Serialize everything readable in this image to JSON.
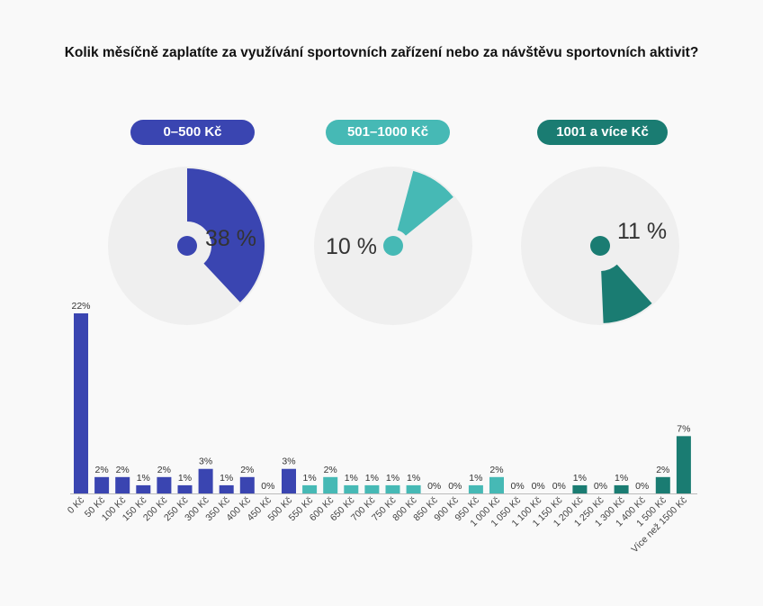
{
  "chart_data": {
    "type": "bar",
    "title": "Kolik měsíčně zaplatíte za využívání sportovních zařízení nebo za návštěvu sportovních aktivit?",
    "groups": [
      {
        "label": "0–500 Kč",
        "percent": 38,
        "percent_label": "38 %",
        "color": "#3a45b1"
      },
      {
        "label": "501–1000 Kč",
        "percent": 10,
        "percent_label": "10 %",
        "color": "#46b9b5"
      },
      {
        "label": "1001 a více Kč",
        "percent": 11,
        "percent_label": "11 %",
        "color": "#1a7c72"
      }
    ],
    "categories": [
      "0 Kč",
      "50 Kč",
      "100 Kč",
      "150 Kč",
      "200 Kč",
      "250 Kč",
      "300 Kč",
      "350 Kč",
      "400 Kč",
      "450 Kč",
      "500 Kč",
      "550 Kč",
      "600 Kč",
      "650 Kč",
      "700 Kč",
      "750 Kč",
      "800 Kč",
      "850 Kč",
      "900 Kč",
      "950 Kč",
      "1 000 Kč",
      "1 050 Kč",
      "1 100 Kč",
      "1 150 Kč",
      "1 200 Kč",
      "1 250 Kč",
      "1 300 Kč",
      "1 400 Kč",
      "1 500 Kč",
      "Více než 1500 Kč"
    ],
    "values": [
      22,
      2,
      2,
      1,
      2,
      1,
      3,
      1,
      2,
      0,
      3,
      1,
      2,
      1,
      1,
      1,
      1,
      0,
      0,
      1,
      2,
      0,
      0,
      0,
      1,
      0,
      1,
      0,
      2,
      7
    ],
    "value_labels": [
      "22%",
      "2%",
      "2%",
      "1%",
      "2%",
      "1%",
      "3%",
      "1%",
      "2%",
      "0%",
      "3%",
      "1%",
      "2%",
      "1%",
      "1%",
      "1%",
      "1%",
      "0%",
      "0%",
      "1%",
      "2%",
      "0%",
      "0%",
      "0%",
      "1%",
      "0%",
      "1%",
      "0%",
      "2%",
      "7%"
    ],
    "group_index": [
      0,
      0,
      0,
      0,
      0,
      0,
      0,
      0,
      0,
      0,
      0,
      1,
      1,
      1,
      1,
      1,
      1,
      1,
      1,
      1,
      1,
      2,
      2,
      2,
      2,
      2,
      2,
      2,
      2,
      2
    ],
    "ylim": [
      0,
      22
    ]
  },
  "colors": {
    "background": "#f9f9f9",
    "circle_bg": "#efefef",
    "axis": "#bbbbbb"
  }
}
